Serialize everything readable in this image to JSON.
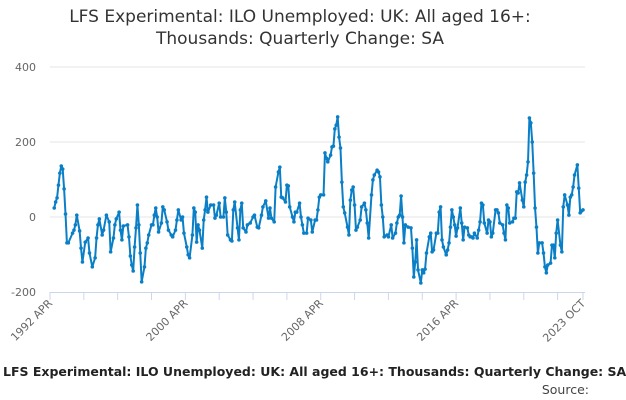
{
  "chart_data": {
    "type": "line",
    "title": "LFS Experimental: ILO Unemployed: UK: All aged 16+: Thousands: Quarterly Change: SA",
    "title_lines": [
      "LFS Experimental: ILO Unemployed: UK: All aged 16+:",
      "Thousands: Quarterly Change: SA"
    ],
    "xlabel": "",
    "ylabel": "",
    "x_range": [
      "1992-04",
      "2023-10"
    ],
    "x_tick_labels": [
      "1992 APR",
      "2000 APR",
      "2008 APR",
      "2016 APR",
      "2023 OCT"
    ],
    "x_tick_dates": [
      "1992-04",
      "2000-04",
      "2008-04",
      "2016-04",
      "2023-10"
    ],
    "ylim": [
      -200,
      400
    ],
    "y_ticks": [
      400,
      200,
      0,
      -200
    ],
    "grid": true,
    "legend": "none",
    "line_color": "#0a7fc6",
    "series": [
      {
        "x": [
          "1992-07",
          "1992-08",
          "1992-09",
          "1992-10",
          "1992-11",
          "1992-12",
          "1993-01",
          "1993-02",
          "1993-03",
          "1993-04",
          "1993-05",
          "1993-08",
          "1993-09",
          "1993-10",
          "1993-11",
          "1994-01",
          "1994-02",
          "1994-03",
          "1994-05",
          "1994-07",
          "1994-08",
          "1994-10",
          "1994-12",
          "1995-01",
          "1995-02",
          "1995-03",
          "1995-05",
          "1995-06",
          "1995-08",
          "1995-10",
          "1995-11",
          "1996-01",
          "1996-02",
          "1996-03",
          "1996-05",
          "1996-06",
          "1996-07",
          "1996-08",
          "1996-11",
          "1996-12",
          "1997-01",
          "1997-02",
          "1997-03",
          "1997-04",
          "1997-05",
          "1997-06",
          "1997-07",
          "1997-08",
          "1997-09",
          "1997-11",
          "1997-12",
          "1998-01",
          "1998-02",
          "1998-04",
          "1998-05",
          "1998-06",
          "1998-07",
          "1998-08",
          "1998-09",
          "1998-11",
          "1998-12",
          "1999-01",
          "1999-03",
          "1999-04",
          "1999-06",
          "1999-07",
          "1999-09",
          "1999-10",
          "1999-11",
          "2000-01",
          "2000-02",
          "2000-03",
          "2000-05",
          "2000-06",
          "2000-07",
          "2000-09",
          "2000-10",
          "2000-11",
          "2000-12",
          "2001-01",
          "2001-02",
          "2001-04",
          "2001-05",
          "2001-06",
          "2001-07",
          "2001-08",
          "2001-10",
          "2001-12",
          "2002-01",
          "2002-02",
          "2002-04",
          "2002-05",
          "2002-07",
          "2002-08",
          "2002-09",
          "2002-10",
          "2002-12",
          "2003-01",
          "2003-02",
          "2003-03",
          "2003-05",
          "2003-06",
          "2003-07",
          "2003-08",
          "2003-09",
          "2003-11",
          "2003-12",
          "2004-02",
          "2004-04",
          "2004-05",
          "2004-07",
          "2004-08",
          "2004-10",
          "2004-11",
          "2005-01",
          "2005-03",
          "2005-04",
          "2005-05",
          "2005-07",
          "2005-08",
          "2005-10",
          "2005-11",
          "2005-12",
          "2006-01",
          "2006-03",
          "2006-04",
          "2006-05",
          "2006-06",
          "2006-08",
          "2006-09",
          "2006-10",
          "2006-11",
          "2007-01",
          "2007-02",
          "2007-03",
          "2007-04",
          "2007-06",
          "2007-07",
          "2007-09",
          "2007-10",
          "2007-12",
          "2008-01",
          "2008-02",
          "2008-03",
          "2008-04",
          "2008-06",
          "2008-07",
          "2008-08",
          "2008-09",
          "2008-11",
          "2008-12",
          "2009-01",
          "2009-02",
          "2009-03",
          "2009-04",
          "2009-05",
          "2009-06",
          "2009-07",
          "2009-08",
          "2009-09",
          "2009-11",
          "2009-12",
          "2010-01",
          "2010-02",
          "2010-03",
          "2010-04",
          "2010-05",
          "2010-06",
          "2010-08",
          "2010-09",
          "2010-11",
          "2010-12",
          "2011-01",
          "2011-02",
          "2011-04",
          "2011-05",
          "2011-06",
          "2011-08",
          "2011-09",
          "2011-10",
          "2011-11",
          "2011-12",
          "2012-01",
          "2012-03",
          "2012-04",
          "2012-06",
          "2012-07",
          "2012-09",
          "2012-10",
          "2012-11",
          "2012-12",
          "2013-01",
          "2013-02",
          "2013-03",
          "2013-04",
          "2013-06",
          "2013-08",
          "2013-09",
          "2013-10",
          "2013-11",
          "2013-12",
          "2014-01",
          "2014-03",
          "2014-04",
          "2014-05",
          "2014-06",
          "2014-07",
          "2014-09",
          "2014-10",
          "2014-11",
          "2014-12",
          "2015-02",
          "2015-03",
          "2015-04",
          "2015-05",
          "2015-06",
          "2015-07",
          "2015-09",
          "2015-10",
          "2015-11",
          "2015-12",
          "2016-01",
          "2016-02",
          "2016-03",
          "2016-04",
          "2016-05",
          "2016-07",
          "2016-08",
          "2016-09",
          "2016-10",
          "2016-12",
          "2017-01",
          "2017-02",
          "2017-03",
          "2017-04",
          "2017-05",
          "2017-07",
          "2017-08",
          "2017-09",
          "2017-10",
          "2017-11",
          "2017-12",
          "2018-02",
          "2018-03",
          "2018-04",
          "2018-05",
          "2018-06",
          "2018-08",
          "2018-09",
          "2018-10",
          "2018-11",
          "2019-01",
          "2019-02",
          "2019-03",
          "2019-04",
          "2019-05",
          "2019-06",
          "2019-08",
          "2019-09",
          "2019-10",
          "2019-11",
          "2019-12",
          "2020-01",
          "2020-03",
          "2020-04",
          "2020-05",
          "2020-06",
          "2020-07",
          "2020-08",
          "2020-09",
          "2020-10",
          "2020-11",
          "2020-12",
          "2021-01",
          "2021-02",
          "2021-03",
          "2021-05",
          "2021-06",
          "2021-07",
          "2021-08",
          "2021-09",
          "2021-11",
          "2021-12",
          "2022-01",
          "2022-02",
          "2022-03",
          "2022-04",
          "2022-06",
          "2022-07",
          "2022-08",
          "2022-09",
          "2022-11",
          "2022-12",
          "2023-01",
          "2023-02",
          "2023-03",
          "2023-04",
          "2023-06",
          "2023-07",
          "2023-08",
          "2023-09",
          "2023-10"
        ],
        "y": [
          24,
          40,
          51,
          85,
          117,
          136,
          128,
          75,
          8,
          -69,
          -69,
          -43,
          -35,
          -21,
          5,
          -37,
          -83,
          -120,
          -67,
          -56,
          -96,
          -133,
          -109,
          -56,
          -21,
          -5,
          -48,
          -35,
          5,
          -13,
          -93,
          -56,
          -21,
          -5,
          13,
          -35,
          -61,
          -24,
          -21,
          -53,
          -104,
          -128,
          -144,
          -80,
          -29,
          32,
          -21,
          -96,
          -173,
          -133,
          -83,
          -69,
          -48,
          -21,
          -21,
          5,
          24,
          0,
          -40,
          -16,
          27,
          19,
          -13,
          -35,
          -48,
          -53,
          -35,
          -8,
          19,
          -8,
          0,
          -43,
          -80,
          -101,
          -109,
          -48,
          24,
          13,
          -67,
          -21,
          -35,
          -83,
          -8,
          19,
          53,
          13,
          32,
          32,
          -3,
          5,
          37,
          0,
          0,
          51,
          13,
          -48,
          -61,
          -64,
          19,
          40,
          -29,
          -61,
          19,
          37,
          -29,
          -40,
          -21,
          -16,
          0,
          5,
          -27,
          -29,
          5,
          27,
          43,
          -3,
          24,
          -3,
          -13,
          80,
          120,
          133,
          53,
          51,
          40,
          85,
          83,
          27,
          0,
          -13,
          13,
          13,
          37,
          0,
          -21,
          -43,
          -43,
          -3,
          -8,
          -40,
          -8,
          -8,
          19,
          53,
          59,
          59,
          171,
          157,
          147,
          165,
          187,
          189,
          235,
          245,
          267,
          213,
          184,
          93,
          27,
          11,
          -27,
          -48,
          45,
          72,
          80,
          32,
          -35,
          -27,
          -8,
          27,
          37,
          19,
          -16,
          -56,
          59,
          99,
          112,
          125,
          120,
          107,
          32,
          0,
          -53,
          -48,
          -53,
          -21,
          -56,
          -43,
          -16,
          0,
          5,
          56,
          0,
          -69,
          -21,
          -27,
          -29,
          -83,
          -160,
          -120,
          -61,
          -141,
          -176,
          -141,
          -149,
          -139,
          -96,
          -53,
          -43,
          -93,
          -88,
          -43,
          -43,
          13,
          27,
          -61,
          -80,
          -101,
          -88,
          -69,
          -27,
          19,
          0,
          -21,
          -51,
          -29,
          24,
          -16,
          -61,
          -27,
          -29,
          -48,
          -53,
          -53,
          -56,
          -43,
          -56,
          -35,
          -13,
          37,
          32,
          -16,
          -43,
          -8,
          -13,
          -53,
          -43,
          19,
          19,
          11,
          -16,
          -21,
          -43,
          -61,
          32,
          24,
          -16,
          -13,
          -3,
          -3,
          67,
          64,
          91,
          45,
          27,
          93,
          112,
          147,
          264,
          251,
          200,
          117,
          24,
          -27,
          -96,
          -69,
          -69,
          -96,
          -133,
          -149,
          -128,
          -123,
          -75,
          -75,
          -109,
          -43,
          -8,
          -75,
          -93,
          27,
          59,
          32,
          5,
          53,
          59,
          80,
          112,
          139,
          77,
          11,
          16,
          19
        ]
      }
    ]
  },
  "footer": {
    "text": "LFS Experimental: ILO Unemployed: UK: All aged 16+: Thousands: Quarterly Change: SA",
    "source_label": "Source:"
  }
}
